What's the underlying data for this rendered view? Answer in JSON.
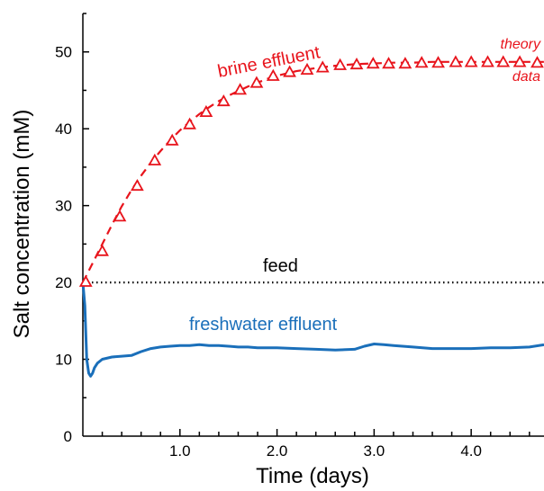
{
  "chart_data": {
    "type": "line",
    "title": "",
    "xlabel": "Time (days)",
    "ylabel": "Salt concentration (mM)",
    "xlim": [
      0,
      4.75
    ],
    "ylim": [
      0,
      55
    ],
    "grid": false,
    "x_ticks": [
      {
        "value": 1.0,
        "label": "1.0"
      },
      {
        "value": 2.0,
        "label": "2.0"
      },
      {
        "value": 3.0,
        "label": "3.0"
      },
      {
        "value": 4.0,
        "label": "4.0"
      }
    ],
    "y_ticks": [
      {
        "value": 0,
        "label": "0"
      },
      {
        "value": 10,
        "label": "10"
      },
      {
        "value": 20,
        "label": "20"
      },
      {
        "value": 30,
        "label": "30"
      },
      {
        "value": 40,
        "label": "40"
      },
      {
        "value": 50,
        "label": "50"
      }
    ],
    "colors": {
      "brine": "#e8141c",
      "freshwater": "#1a6fba",
      "feed": "#000000"
    },
    "series": [
      {
        "label_key": "brine_data",
        "style": "triangle-markers",
        "x": [
          0.03,
          0.2,
          0.38,
          0.56,
          0.74,
          0.92,
          1.1,
          1.27,
          1.45,
          1.62,
          1.79,
          1.96,
          2.13,
          2.31,
          2.47,
          2.65,
          2.82,
          2.99,
          3.15,
          3.32,
          3.49,
          3.66,
          3.84,
          4.0,
          4.17,
          4.33,
          4.5,
          4.68
        ],
        "y": [
          20.0,
          24.0,
          28.5,
          32.5,
          35.8,
          38.4,
          40.5,
          42.1,
          43.5,
          45.0,
          45.9,
          46.8,
          47.3,
          47.6,
          47.9,
          48.2,
          48.3,
          48.4,
          48.4,
          48.4,
          48.5,
          48.5,
          48.6,
          48.6,
          48.6,
          48.6,
          48.6,
          48.5
        ]
      },
      {
        "label_key": "brine_theory",
        "style": "dashed",
        "x": [
          0.0,
          0.1,
          0.2,
          0.3,
          0.4,
          0.5,
          0.6,
          0.7,
          0.8,
          0.9,
          1.0,
          1.1,
          1.2,
          1.3,
          1.4,
          1.5,
          1.6,
          1.7,
          1.8,
          1.9,
          2.0,
          2.2,
          2.4,
          2.6,
          2.8,
          3.0,
          3.2,
          3.4,
          3.6,
          3.8,
          4.0,
          4.2,
          4.4,
          4.6,
          4.75
        ],
        "y": [
          20.0,
          22.5,
          25.0,
          27.5,
          29.9,
          32.0,
          33.9,
          35.6,
          37.1,
          38.5,
          39.8,
          40.9,
          41.9,
          42.8,
          43.6,
          44.3,
          44.9,
          45.5,
          46.0,
          46.5,
          46.9,
          47.5,
          47.9,
          48.2,
          48.4,
          48.5,
          48.6,
          48.6,
          48.7,
          48.7,
          48.7,
          48.7,
          48.7,
          48.7,
          48.7
        ]
      },
      {
        "label_key": "feed",
        "style": "dotted",
        "x": [
          0.0,
          4.75
        ],
        "y": [
          20.0,
          20.0
        ]
      },
      {
        "label_key": "freshwater",
        "style": "solid",
        "x": [
          0.0,
          0.02,
          0.04,
          0.06,
          0.08,
          0.1,
          0.12,
          0.15,
          0.2,
          0.3,
          0.4,
          0.5,
          0.6,
          0.7,
          0.8,
          0.9,
          1.0,
          1.1,
          1.2,
          1.3,
          1.4,
          1.5,
          1.6,
          1.7,
          1.8,
          1.9,
          2.0,
          2.2,
          2.4,
          2.6,
          2.8,
          2.9,
          3.0,
          3.1,
          3.2,
          3.4,
          3.6,
          3.8,
          4.0,
          4.2,
          4.4,
          4.6,
          4.75
        ],
        "y": [
          20.0,
          17.0,
          10.0,
          8.2,
          7.8,
          8.2,
          8.9,
          9.5,
          10.0,
          10.3,
          10.4,
          10.5,
          11.0,
          11.4,
          11.6,
          11.7,
          11.8,
          11.8,
          11.9,
          11.8,
          11.8,
          11.7,
          11.6,
          11.6,
          11.5,
          11.5,
          11.5,
          11.4,
          11.3,
          11.2,
          11.3,
          11.7,
          12.0,
          11.9,
          11.8,
          11.6,
          11.4,
          11.4,
          11.4,
          11.5,
          11.5,
          11.6,
          11.9
        ]
      }
    ],
    "annotations": {
      "brine_effluent": "brine effluent",
      "theory": "theory",
      "data": "data",
      "feed": "feed",
      "freshwater_effluent": "freshwater effluent"
    }
  }
}
